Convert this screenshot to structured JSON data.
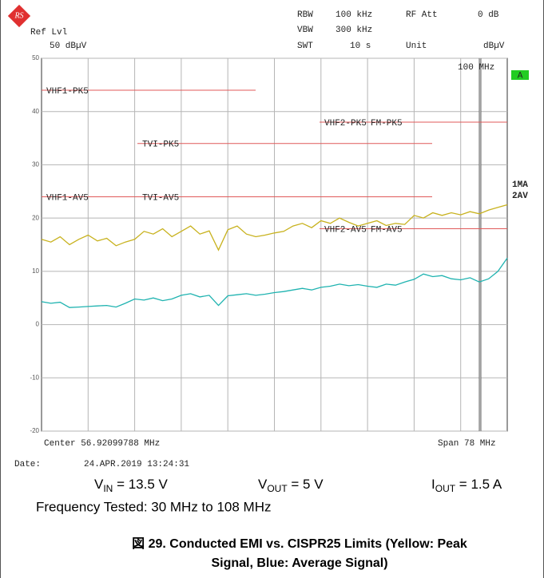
{
  "header": {
    "ref_label": "Ref Lvl",
    "ref_value": "50 dBµV",
    "rbw_label": "RBW",
    "rbw_value": "100 kHz",
    "rfatt_label": "RF Att",
    "rfatt_value": "0 dB",
    "vbw_label": "VBW",
    "vbw_value": "300 kHz",
    "swt_label": "SWT",
    "swt_value": "10 s",
    "unit_label": "Unit",
    "unit_value": "dBµV"
  },
  "chart_data": {
    "type": "line",
    "ylim": [
      -20,
      50
    ],
    "yticks": [
      -20,
      -10,
      0,
      10,
      20,
      30,
      40,
      50
    ],
    "grid": true,
    "marker_label": "100 MHz",
    "trace_tags": [
      "A",
      "1MA",
      "2AV"
    ],
    "limit_color": "#e05a5a",
    "limit_lines": [
      {
        "name": "VHF1-PK5",
        "value": 44
      },
      {
        "name": "VHF2-PK5",
        "value": 38
      },
      {
        "name": "FM-PK5",
        "value": 38
      },
      {
        "name": "TVI-PK5",
        "value": 34
      },
      {
        "name": "VHF1-AV5",
        "value": 24
      },
      {
        "name": "TVI-AV5",
        "value": 24
      },
      {
        "name": "VHF2-AV5",
        "value": 18
      },
      {
        "name": "FM-AV5",
        "value": 18
      }
    ],
    "series": [
      {
        "name": "Peak",
        "color": "#c8b21e",
        "values": [
          16,
          15.5,
          16.5,
          15,
          16,
          16.8,
          15.7,
          16.2,
          14.8,
          15.5,
          16,
          17.5,
          17,
          18,
          16.5,
          17.5,
          18.5,
          17,
          17.6,
          14,
          17.8,
          18.5,
          17,
          16.5,
          16.8,
          17.2,
          17.5,
          18.5,
          19,
          18.2,
          19.5,
          19,
          20,
          19.2,
          18.5,
          19,
          19.5,
          18.6,
          19,
          18.8,
          20.5,
          20,
          21,
          20.5,
          21,
          20.6,
          21.2,
          20.8,
          21.5,
          22,
          22.5
        ]
      },
      {
        "name": "Average",
        "color": "#1fb3b0",
        "values": [
          4.3,
          4,
          4.2,
          3.2,
          3.3,
          3.4,
          3.5,
          3.6,
          3.3,
          4,
          4.8,
          4.6,
          5,
          4.5,
          4.8,
          5.5,
          5.8,
          5.2,
          5.5,
          3.6,
          5.4,
          5.6,
          5.8,
          5.5,
          5.7,
          6,
          6.2,
          6.5,
          6.8,
          6.5,
          7,
          7.2,
          7.6,
          7.3,
          7.5,
          7.2,
          7,
          7.6,
          7.4,
          8,
          8.5,
          9.5,
          9,
          9.2,
          8.6,
          8.4,
          8.8,
          8,
          8.6,
          10,
          12.5
        ]
      }
    ],
    "center": "Center 56.92099788 MHz",
    "span": "Span 78 MHz"
  },
  "footer": {
    "date_label": "Date:",
    "date_value": "24.APR.2019  13:24:31"
  },
  "conditions": [
    {
      "main": "V",
      "sub": "IN",
      "rest": " = 13.5 V"
    },
    {
      "main": "V",
      "sub": "OUT",
      "rest": " = 5 V"
    },
    {
      "main": "I",
      "sub": "OUT",
      "rest": " = 1.5 A"
    }
  ],
  "frequency_note": "Frequency Tested: 30 MHz to 108 MHz",
  "caption_lines": [
    "図 29. Conducted EMI vs. CISPR25 Limits (Yellow: Peak",
    "Signal, Blue: Average Signal)"
  ]
}
